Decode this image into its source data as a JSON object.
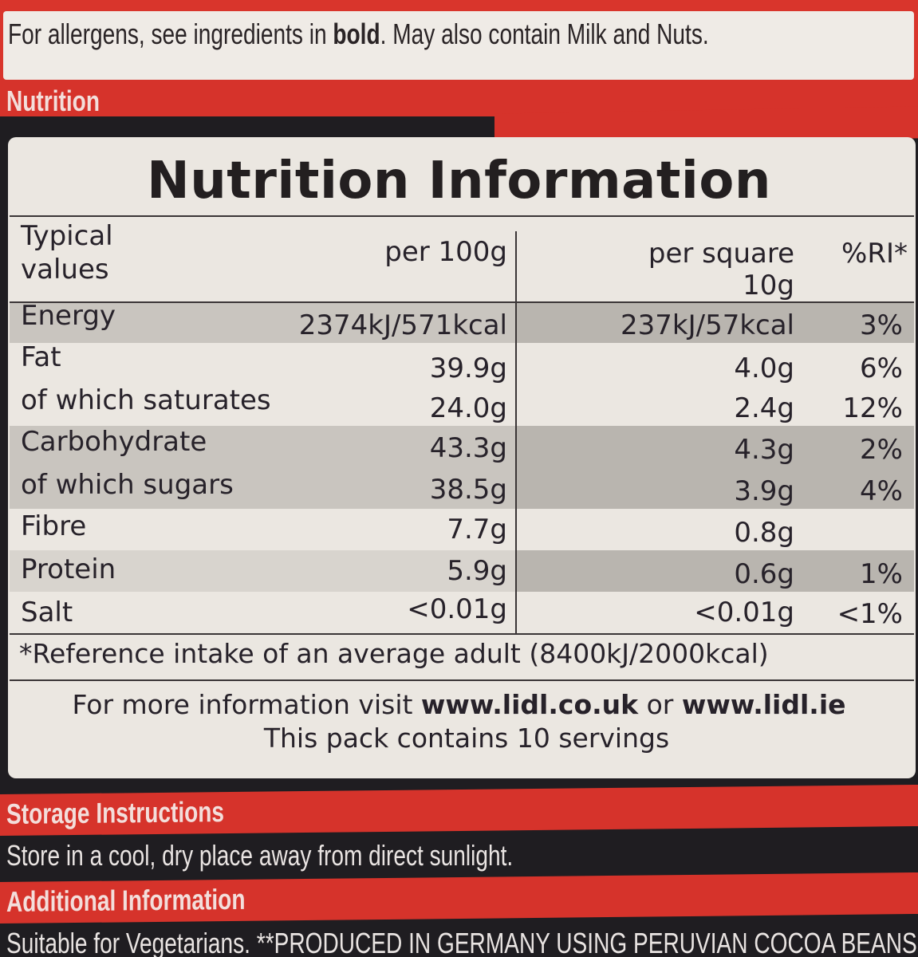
{
  "allergens": {
    "text_before": "For allergens, see ingredients in ",
    "bold_word": "bold",
    "text_after": ". May also contain Milk and Nuts."
  },
  "sections": {
    "nutrition_label": "Nutrition",
    "storage_label": "Storage Instructions",
    "storage_text": "Store in a cool, dry place away from direct sunlight.",
    "additional_label": "Additional Information",
    "additional_text": "Suitable for Vegetarians. **PRODUCED IN GERMANY USING PERUVIAN COCOA BEANS"
  },
  "table": {
    "title": "Nutrition Information",
    "headers": {
      "col1_line1": "Typical",
      "col1_line2": "values",
      "col2": "per 100g",
      "col3_line1": "per square",
      "col3_line2": "10g",
      "col4": "%RI*"
    },
    "rows": [
      {
        "name": "Energy",
        "per100": "2374kJ/571kcal",
        "perSquare": "237kJ/57kcal",
        "ri": "3%"
      },
      {
        "name": "Fat",
        "per100": "39.9g",
        "perSquare": "4.0g",
        "ri": "6%"
      },
      {
        "name": "of which saturates",
        "per100": "24.0g",
        "perSquare": "2.4g",
        "ri": "12%"
      },
      {
        "name": "Carbohydrate",
        "per100": "43.3g",
        "perSquare": "4.3g",
        "ri": "2%"
      },
      {
        "name": "of which sugars",
        "per100": "38.5g",
        "perSquare": "3.9g",
        "ri": "4%"
      },
      {
        "name": "Fibre",
        "per100": "7.7g",
        "perSquare": "0.8g",
        "ri": ""
      },
      {
        "name": "Protein",
        "per100": "5.9g",
        "perSquare": "0.6g",
        "ri": "1%"
      },
      {
        "name": "Salt",
        "per100": "<0.01g",
        "perSquare": "<0.01g",
        "ri": "<1%"
      }
    ],
    "footnote": "*Reference intake of an average adult (8400kJ/2000kcal)",
    "more_info_prefix": "For more information visit ",
    "url_uk": "www.lidl.co.uk",
    "more_info_or": " or ",
    "url_ie": "www.lidl.ie",
    "servings": "This pack contains 10 servings"
  },
  "colors": {
    "brand_red": "#d6332b",
    "panel": "#ebe7e1",
    "background": "#1f1d21"
  }
}
